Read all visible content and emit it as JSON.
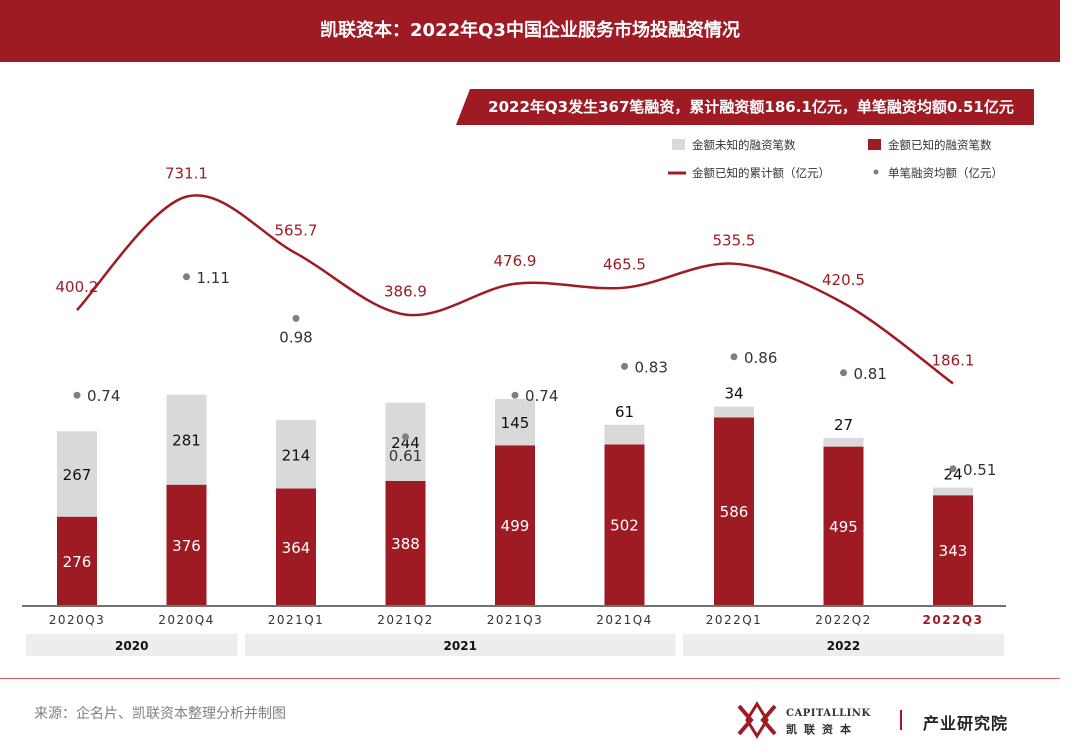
{
  "header": {
    "title": "凯联资本：2022年Q3中国企业服务市场投融资情况"
  },
  "banner": {
    "text": "2022年Q3发生367笔融资，累计融资额186.1亿元，单笔融资均额0.51亿元"
  },
  "colors": {
    "brand": "#9e1b23",
    "unknown_bar": "#d9d9d9",
    "point": "#7f7f7f",
    "year_band": "#ededed",
    "amount_label": "#9e1b23"
  },
  "chart_data": {
    "type": "bar",
    "title": "",
    "categories": [
      "2020Q3",
      "2020Q4",
      "2021Q1",
      "2021Q2",
      "2021Q3",
      "2021Q4",
      "2022Q1",
      "2022Q2",
      "2022Q3"
    ],
    "highlight_category": "2022Q3",
    "series": [
      {
        "name": "金额已知的融资笔数",
        "kind": "stacked-bar",
        "values": [
          276,
          376,
          364,
          388,
          499,
          502,
          586,
          495,
          343
        ]
      },
      {
        "name": "金额未知的融资笔数",
        "kind": "stacked-bar",
        "values": [
          267,
          281,
          214,
          244,
          145,
          61,
          34,
          27,
          24
        ]
      },
      {
        "name": "金额已知的累计额（亿元）",
        "kind": "smooth-line",
        "values": [
          400.2,
          731.1,
          565.7,
          386.9,
          476.9,
          465.5,
          535.5,
          420.5,
          186.1
        ]
      },
      {
        "name": "单笔融资均额（亿元）",
        "kind": "scatter",
        "values": [
          0.74,
          1.11,
          0.98,
          0.61,
          0.74,
          0.83,
          0.86,
          0.81,
          0.51
        ]
      }
    ],
    "count_labels": {
      "known": [
        "276",
        "376",
        "364",
        "388",
        "499",
        "502",
        "586",
        "495",
        "343"
      ],
      "unknown": [
        "267",
        "281",
        "214",
        "244",
        "145",
        "61",
        "34",
        "27",
        "24"
      ]
    },
    "amount_labels": [
      "400.2",
      "731.1",
      "565.7",
      "386.9",
      "476.9",
      "465.5",
      "535.5",
      "420.5",
      "186.1"
    ],
    "avg_labels": [
      "0.74",
      "1.11",
      "0.98",
      "0.61",
      "0.74",
      "0.83",
      "0.86",
      "0.81",
      "0.51"
    ],
    "legend": [
      {
        "label": "金额未知的融资笔数",
        "marker": "square-grey"
      },
      {
        "label": "金额已知的融资笔数",
        "marker": "square-red"
      },
      {
        "label": "金额已知的累计额（亿元）",
        "marker": "line-red"
      },
      {
        "label": "单笔融资均额（亿元）",
        "marker": "dot-grey"
      }
    ],
    "legend_position": "top-right",
    "years": [
      {
        "label": "2020",
        "from": 0,
        "to": 1
      },
      {
        "label": "2021",
        "from": 2,
        "to": 5
      },
      {
        "label": "2022",
        "from": 6,
        "to": 8
      }
    ],
    "bar_scale_max": 700,
    "line_range": [
      100,
      800
    ],
    "avg_range": [
      0.3,
      1.3
    ]
  },
  "footer": {
    "source": "来源：企名片、凯联资本整理分析并制图",
    "logo_en": "CAPITALLINK",
    "logo_cn": "凯联资本",
    "department": "产业研究院"
  }
}
